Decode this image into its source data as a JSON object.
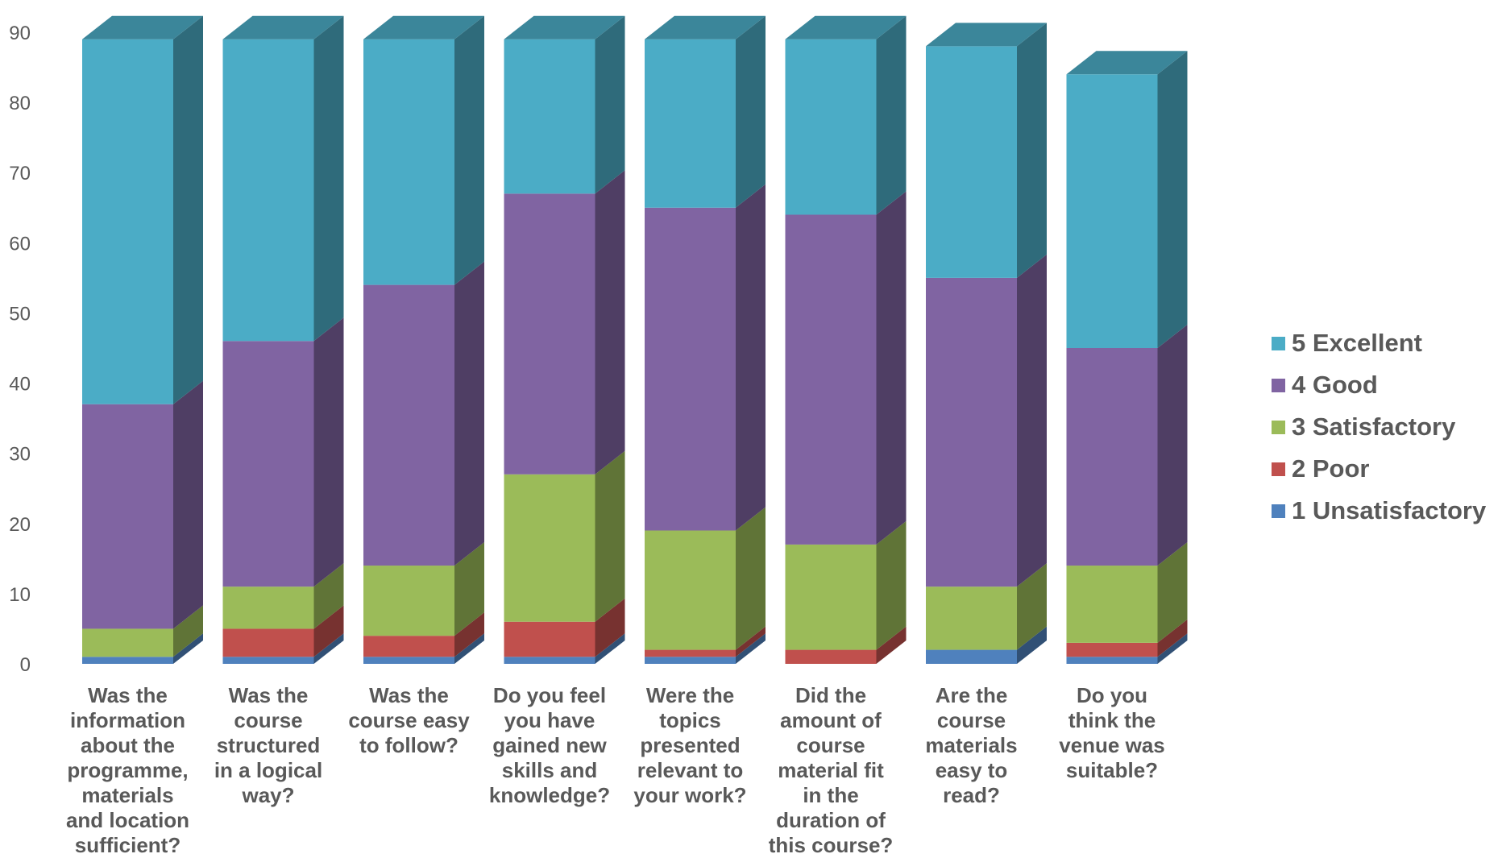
{
  "chart_data": {
    "type": "bar",
    "stacked": true,
    "three_d": true,
    "categories": [
      "Was the information about the programme, materials and location sufficient?",
      "Was the course structured in a logical way?",
      "Was the course easy to follow?",
      "Do you feel you have gained new skills and knowledge?",
      "Were the topics presented relevant to your work?",
      "Did the amount of course material fit in the duration of this course?",
      "Are the course materials easy to read?",
      "Do you think the venue was suitable?"
    ],
    "category_lines": [
      [
        "Was the",
        "information",
        "about the",
        "programme,",
        "materials",
        "and location",
        "sufficient?"
      ],
      [
        "Was the",
        "course",
        "structured",
        "in a logical",
        "way?"
      ],
      [
        "Was the",
        "course easy",
        "to follow?"
      ],
      [
        "Do you feel",
        "you have",
        "gained new",
        "skills and",
        "knowledge?"
      ],
      [
        "Were the",
        "topics",
        "presented",
        "relevant to",
        "your work?"
      ],
      [
        "Did the",
        "amount of",
        "course",
        "material fit",
        "in the",
        "duration of",
        "this course?"
      ],
      [
        "Are the",
        "course",
        "materials",
        "easy to",
        "read?"
      ],
      [
        "Do you",
        "think the",
        "venue was",
        "suitable?"
      ]
    ],
    "series": [
      {
        "name": "1 Unsatisfactory",
        "color": "#4F81BD",
        "values": [
          1,
          1,
          1,
          1,
          1,
          0,
          2,
          1
        ]
      },
      {
        "name": "2 Poor",
        "color": "#C0504D",
        "values": [
          0,
          4,
          3,
          5,
          1,
          2,
          0,
          2
        ]
      },
      {
        "name": "3 Satisfactory",
        "color": "#9BBB59",
        "values": [
          4,
          6,
          10,
          21,
          17,
          15,
          9,
          11
        ]
      },
      {
        "name": "4 Good",
        "color": "#8064A2",
        "values": [
          32,
          35,
          40,
          40,
          46,
          47,
          44,
          31
        ]
      },
      {
        "name": "5 Excellent",
        "color": "#4BACC6",
        "values": [
          52,
          43,
          35,
          22,
          24,
          25,
          33,
          39
        ]
      }
    ],
    "legend_order": [
      "5 Excellent",
      "4 Good",
      "3 Satisfactory",
      "2 Poor",
      "1 Unsatisfactory"
    ],
    "legend_position": "right",
    "ylim": [
      0,
      90
    ],
    "yticks": [
      0,
      10,
      20,
      30,
      40,
      50,
      60,
      70,
      80,
      90
    ],
    "grid": false,
    "title": "",
    "xlabel": "",
    "ylabel": ""
  }
}
